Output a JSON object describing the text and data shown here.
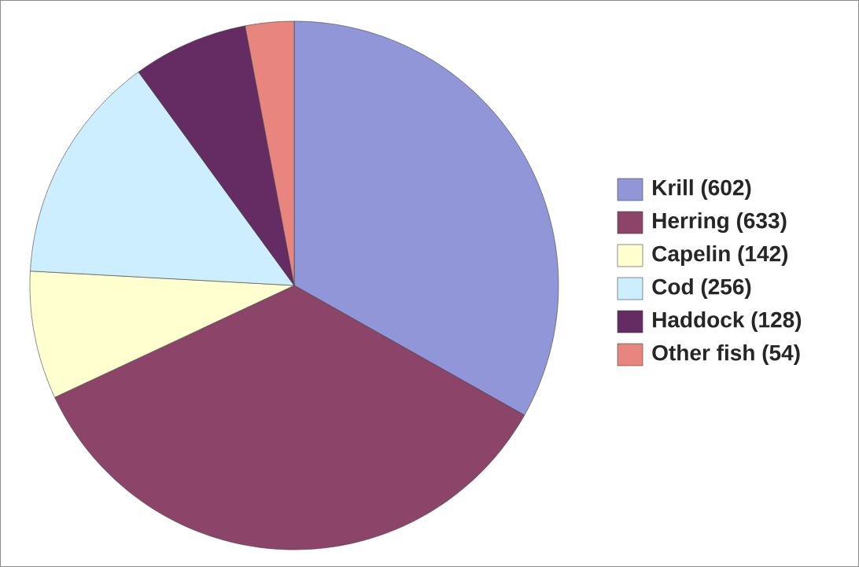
{
  "chart_data": {
    "type": "pie",
    "categories": [
      "Krill (602)",
      "Herring (633)",
      "Capelin (142)",
      "Cod (256)",
      "Haddock (128)",
      "Other fish (54)"
    ],
    "values": [
      602,
      633,
      142,
      256,
      128,
      54
    ],
    "colors": [
      "#9096d8",
      "#8c4468",
      "#ffffd0",
      "#cdeeff",
      "#642c62",
      "#e8857e"
    ],
    "legend": "right"
  }
}
